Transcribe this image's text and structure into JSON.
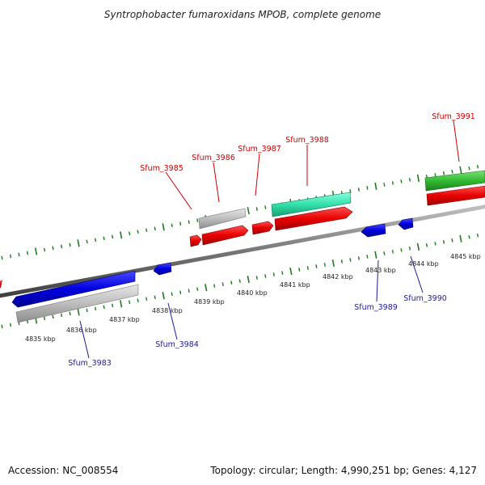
{
  "title": "Syntrophobacter fumaroxidans MPOB, complete genome",
  "footer": {
    "accession": "Accession: NC_008554",
    "summary": "Topology: circular; Length: 4,990,251 bp; Genes: 4,127"
  },
  "colors": {
    "backbone": "#8a8a8a",
    "tick": "#1f7a1f",
    "forward_label": "#cc0000",
    "reverse_label": "#1a1a99",
    "red_feature": "#e00000",
    "blue_feature": "#0000dd",
    "gray_feature": "#b8b8b8",
    "teal_feature": "#33ddaa",
    "green_feature": "#33bb33"
  },
  "scale_labels": [
    "4835 kbp",
    "4836 kbp",
    "4837 kbp",
    "4838 kbp",
    "4839 kbp",
    "4840 kbp",
    "4841 kbp",
    "4842 kbp",
    "4843 kbp",
    "4844 kbp",
    "4845 kbp"
  ],
  "forward_genes": [
    "Sfum_3985",
    "Sfum_3986",
    "Sfum_3987",
    "Sfum_3988",
    "Sfum_3991"
  ],
  "reverse_genes": [
    "Sfum_3983",
    "Sfum_3984",
    "Sfum_3989",
    "Sfum_3990"
  ]
}
